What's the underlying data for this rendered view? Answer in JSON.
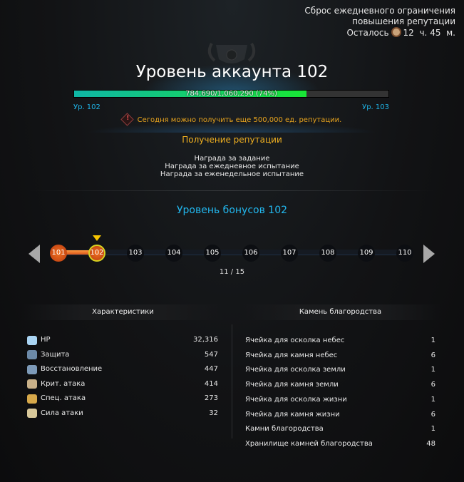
{
  "reset": {
    "line1": "Сброс ежедневного ограничения",
    "line2": "повышения репутации",
    "remaining_label": "Осталось",
    "hours": "12",
    "hours_unit": "ч.",
    "minutes": "45",
    "minutes_unit": "м."
  },
  "title": "Уровень аккаунта 102",
  "progress": {
    "text": "784,690/1,060,290 (74%)",
    "percent": 74,
    "left_level": "Ур. 102",
    "right_level": "Ур. 103"
  },
  "notice": "Сегодня можно получить еще 500,000 ед. репутации.",
  "reputation": {
    "heading": "Получение репутации",
    "items": [
      "Награда за задание",
      "Награда за ежедневное испытание",
      "Награда за еженедельное испытание"
    ]
  },
  "bonus": {
    "heading": "Уровень бонусов 102",
    "levels": [
      "101",
      "102",
      "103",
      "104",
      "105",
      "106",
      "107",
      "108",
      "109",
      "110"
    ],
    "current": "102",
    "page": "11 / 15"
  },
  "stats": {
    "heading": "Характеристики",
    "items": [
      {
        "label": "HP",
        "value": "32,316",
        "icon": "heart-icon"
      },
      {
        "label": "Защита",
        "value": "547",
        "icon": "shield-icon"
      },
      {
        "label": "Восстановление",
        "value": "447",
        "icon": "heal-icon"
      },
      {
        "label": "Крит. атака",
        "value": "414",
        "icon": "crit-icon"
      },
      {
        "label": "Спец. атака",
        "value": "273",
        "icon": "special-icon"
      },
      {
        "label": "Сила атаки",
        "value": "32",
        "icon": "swords-icon"
      }
    ]
  },
  "gems": {
    "heading": "Камень благородства",
    "items": [
      {
        "label": "Ячейка для осколка небес",
        "value": "1"
      },
      {
        "label": "Ячейка для камня небес",
        "value": "6"
      },
      {
        "label": "Ячейка для осколка земли",
        "value": "1"
      },
      {
        "label": "Ячейка для камня земли",
        "value": "6"
      },
      {
        "label": "Ячейка для осколка жизни",
        "value": "1"
      },
      {
        "label": "Ячейка для камня жизни",
        "value": "6"
      },
      {
        "label": "Камни благородства",
        "value": "1"
      },
      {
        "label": "Хранилище камней благородства",
        "value": "48"
      }
    ]
  }
}
